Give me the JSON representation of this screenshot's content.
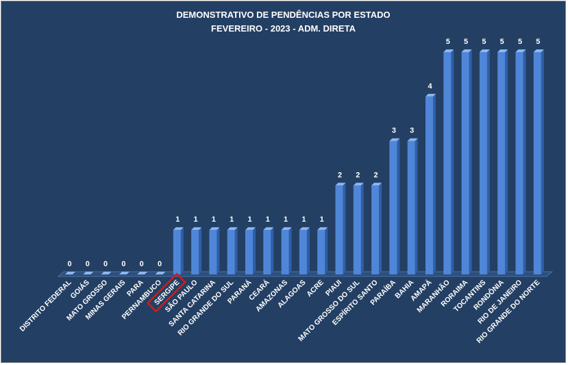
{
  "chart_data": {
    "type": "bar",
    "title": "DEMONSTRATIVO DE PENDÊNCIAS POR ESTADO",
    "subtitle": "FEVEREIRO - 2023 - ADM. DIRETA",
    "xlabel": "",
    "ylabel": "",
    "ylim": [
      0,
      5
    ],
    "grid": false,
    "legend": "none",
    "categories": [
      "DISTRITO FEDERAL",
      "GOIÁS",
      "MATO GROSSO",
      "MINAS GERAIS",
      "PARA",
      "PERNAMBUCO",
      "SERGIPE",
      "SÃO PAULO",
      "SANTA CATARINA",
      "RIO GRANDE DO SUL",
      "PARANÁ",
      "CEARÁ",
      "AMAZONAS",
      "ALAGOAS",
      "ACRE",
      "PIAUI",
      "MATO GROSSO  DO SUL",
      "ESPÍRITO SANTO",
      "PARAÍBA",
      "BAHIA",
      "AMAPÁ",
      "MARANHÃO",
      "RORAIMA",
      "TOCANTINS",
      "RONDÔNIA",
      "RIO DE JANEIRO",
      "RIO GRANDE DO NORTE"
    ],
    "values": [
      0,
      0,
      0,
      0,
      0,
      0,
      1,
      1,
      1,
      1,
      1,
      1,
      1,
      1,
      1,
      2,
      2,
      2,
      3,
      3,
      4,
      5,
      5,
      5,
      5,
      5,
      5
    ],
    "highlighted_category": "SERGIPE",
    "colors": {
      "background": "#233f63",
      "bar_front": "#4f86d8",
      "bar_side": "#2f5fa8",
      "bar_top": "#8fb6ee",
      "text": "#ffffff",
      "highlight_box": "#d01c1c"
    }
  }
}
